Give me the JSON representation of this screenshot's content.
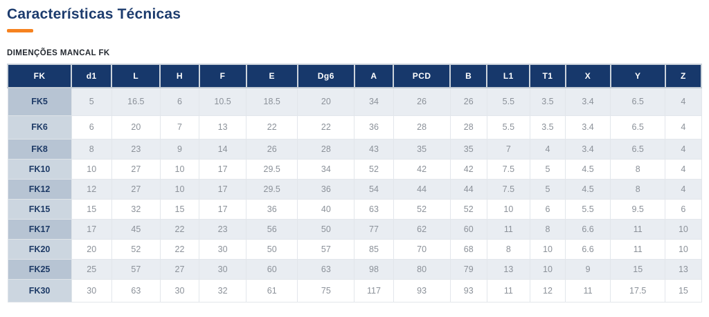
{
  "page": {
    "title": "Características Técnicas",
    "section_label": "DIMENÇÕES MANCAL FK"
  },
  "colors": {
    "title_navy": "#1d3c6e",
    "accent_orange": "#f6821f",
    "table_header_bg": "#17386b",
    "row_alt_bg": "#e9edf2",
    "row_bg": "#ffffff",
    "row_label_alt_bg": "#b7c4d3",
    "row_label_bg": "#ccd6e0",
    "data_text": "#8b9199"
  },
  "table": {
    "columns": [
      "FK",
      "d1",
      "L",
      "H",
      "F",
      "E",
      "Dg6",
      "A",
      "PCD",
      "B",
      "L1",
      "T1",
      "X",
      "Y",
      "Z"
    ],
    "rows": [
      {
        "name": "FK5",
        "values": [
          "5",
          "16.5",
          "6",
          "10.5",
          "18.5",
          "20",
          "34",
          "26",
          "26",
          "5.5",
          "3.5",
          "3.4",
          "6.5",
          "4"
        ]
      },
      {
        "name": "FK6",
        "values": [
          "6",
          "20",
          "7",
          "13",
          "22",
          "22",
          "36",
          "28",
          "28",
          "5.5",
          "3.5",
          "3.4",
          "6.5",
          "4"
        ]
      },
      {
        "name": "FK8",
        "values": [
          "8",
          "23",
          "9",
          "14",
          "26",
          "28",
          "43",
          "35",
          "35",
          "7",
          "4",
          "3.4",
          "6.5",
          "4"
        ]
      },
      {
        "name": "FK10",
        "values": [
          "10",
          "27",
          "10",
          "17",
          "29.5",
          "34",
          "52",
          "42",
          "42",
          "7.5",
          "5",
          "4.5",
          "8",
          "4"
        ]
      },
      {
        "name": "FK12",
        "values": [
          "12",
          "27",
          "10",
          "17",
          "29.5",
          "36",
          "54",
          "44",
          "44",
          "7.5",
          "5",
          "4.5",
          "8",
          "4"
        ]
      },
      {
        "name": "FK15",
        "values": [
          "15",
          "32",
          "15",
          "17",
          "36",
          "40",
          "63",
          "52",
          "52",
          "10",
          "6",
          "5.5",
          "9.5",
          "6"
        ]
      },
      {
        "name": "FK17",
        "values": [
          "17",
          "45",
          "22",
          "23",
          "56",
          "50",
          "77",
          "62",
          "60",
          "11",
          "8",
          "6.6",
          "11",
          "10"
        ]
      },
      {
        "name": "FK20",
        "values": [
          "20",
          "52",
          "22",
          "30",
          "50",
          "57",
          "85",
          "70",
          "68",
          "8",
          "10",
          "6.6",
          "11",
          "10"
        ]
      },
      {
        "name": "FK25",
        "values": [
          "25",
          "57",
          "27",
          "30",
          "60",
          "63",
          "98",
          "80",
          "79",
          "13",
          "10",
          "9",
          "15",
          "13"
        ]
      },
      {
        "name": "FK30",
        "values": [
          "30",
          "63",
          "30",
          "32",
          "61",
          "75",
          "117",
          "93",
          "93",
          "11",
          "12",
          "11",
          "17.5",
          "15"
        ]
      }
    ]
  }
}
